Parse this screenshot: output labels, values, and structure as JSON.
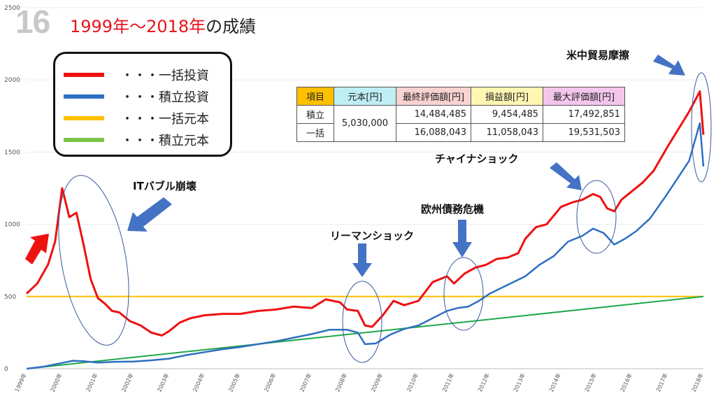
{
  "slide_number": "16",
  "title": {
    "red": "1999年～2018年",
    "rest": "の成績"
  },
  "legend": [
    {
      "label": "・・・一括投資",
      "color": "#ee1111"
    },
    {
      "label": "・・・積立投資",
      "color": "#2e6fc2"
    },
    {
      "label": "・・・一括元本",
      "color": "#ffc000"
    },
    {
      "label": "・・・積立元本",
      "color": "#7cc24a"
    }
  ],
  "table": {
    "headers": [
      "項目",
      "元本[円]",
      "最終評価額[円]",
      "損益額[円]",
      "最大評価額[円]"
    ],
    "header_colors": [
      "#ffc000",
      "#bfeef5",
      "#f9d2d2",
      "#fff6b3",
      "#f4c6ec"
    ],
    "rows": [
      {
        "item": "積立",
        "final": "14,484,485",
        "profit": "9,454,485",
        "max": "17,492,851"
      },
      {
        "item": "一括",
        "final": "16,088,043",
        "profit": "11,058,043",
        "max": "19,531,503"
      }
    ],
    "principal": "5,030,000"
  },
  "annotations": {
    "it_bubble": "ITバブル崩壊",
    "lehman": "リーマンショック",
    "euro_debt": "欧州債務危機",
    "china": "チャイナショック",
    "trade_war": "米中貿易摩擦"
  },
  "chart_data": {
    "type": "line",
    "y_ticks": [
      "0",
      "500",
      "1000",
      "1500",
      "2000",
      "2500"
    ],
    "ylim": [
      0,
      2500
    ],
    "xlim": [
      1999.0,
      2018.0
    ],
    "x_ticks": [
      "1999年",
      "2000年",
      "2001年",
      "2002年",
      "2003年",
      "2004年",
      "2005年",
      "2006年",
      "2007年",
      "2008年",
      "2009年",
      "2010年",
      "2011年",
      "2012年",
      "2013年",
      "2014年",
      "2015年",
      "2016年",
      "2017年",
      "2018年"
    ],
    "series": [
      {
        "key": "lump_sum",
        "color": "#ee1111",
        "x": [
          1999.0,
          1999.3,
          1999.6,
          1999.8,
          2000.0,
          2000.2,
          2000.4,
          2000.6,
          2000.8,
          2001.0,
          2001.2,
          2001.4,
          2001.6,
          2001.9,
          2002.2,
          2002.5,
          2002.8,
          2003.0,
          2003.3,
          2003.6,
          2004.0,
          2004.5,
          2005.0,
          2005.5,
          2006.0,
          2006.5,
          2007.0,
          2007.4,
          2007.8,
          2008.0,
          2008.3,
          2008.5,
          2008.7,
          2009.0,
          2009.3,
          2009.6,
          2010.0,
          2010.4,
          2010.8,
          2011.0,
          2011.3,
          2011.6,
          2011.9,
          2012.2,
          2012.5,
          2012.8,
          2013.0,
          2013.3,
          2013.6,
          2014.0,
          2014.3,
          2014.6,
          2014.9,
          2015.1,
          2015.3,
          2015.5,
          2015.7,
          2016.0,
          2016.3,
          2016.6,
          2017.0,
          2017.3,
          2017.6,
          2017.9,
          2018.0
        ],
        "y": [
          520,
          590,
          720,
          880,
          1250,
          1050,
          1080,
          860,
          620,
          490,
          450,
          400,
          390,
          330,
          300,
          250,
          230,
          260,
          320,
          350,
          370,
          380,
          380,
          400,
          410,
          430,
          420,
          480,
          460,
          410,
          400,
          300,
          290,
          370,
          470,
          440,
          470,
          600,
          640,
          590,
          660,
          700,
          720,
          760,
          770,
          800,
          900,
          980,
          1000,
          1120,
          1150,
          1170,
          1210,
          1190,
          1110,
          1090,
          1170,
          1230,
          1290,
          1370,
          1540,
          1660,
          1780,
          1920,
          1620
        ]
      },
      {
        "key": "dca",
        "color": "#2e6fc2",
        "x": [
          1999.0,
          1999.5,
          2000.0,
          2000.3,
          2000.6,
          2001.0,
          2001.5,
          2002.0,
          2002.5,
          2003.0,
          2003.5,
          2004.0,
          2004.5,
          2005.0,
          2005.5,
          2006.0,
          2006.5,
          2007.0,
          2007.5,
          2008.0,
          2008.3,
          2008.5,
          2008.8,
          2009.2,
          2009.6,
          2010.0,
          2010.4,
          2010.8,
          2011.1,
          2011.4,
          2011.7,
          2012.0,
          2012.5,
          2013.0,
          2013.4,
          2013.8,
          2014.2,
          2014.6,
          2014.9,
          2015.2,
          2015.5,
          2015.8,
          2016.1,
          2016.5,
          2016.9,
          2017.2,
          2017.6,
          2017.9,
          2018.0
        ],
        "y": [
          0,
          15,
          40,
          55,
          52,
          42,
          48,
          50,
          58,
          70,
          95,
          115,
          135,
          150,
          170,
          190,
          215,
          240,
          270,
          270,
          250,
          170,
          175,
          235,
          275,
          300,
          350,
          400,
          420,
          430,
          470,
          520,
          580,
          640,
          720,
          780,
          880,
          920,
          970,
          940,
          860,
          900,
          950,
          1040,
          1180,
          1290,
          1440,
          1700,
          1400
        ]
      },
      {
        "key": "lump_principal",
        "color": "#ffc000",
        "x": [
          1999.0,
          2018.0
        ],
        "y": [
          500,
          500
        ]
      },
      {
        "key": "dca_principal",
        "color": "#1fa84a",
        "x": [
          1999.0,
          2018.0
        ],
        "y": [
          0,
          500
        ]
      }
    ]
  }
}
